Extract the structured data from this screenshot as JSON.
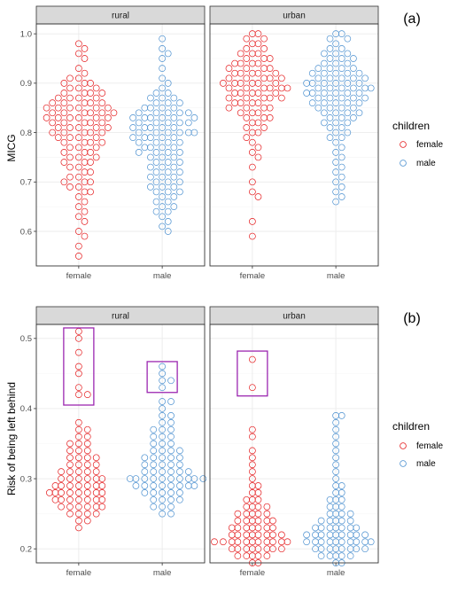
{
  "chart_data": [
    {
      "type": "scatter",
      "subtype": "beeswarm",
      "tag": "(a)",
      "ylabel": "MICG",
      "ylim": [
        0.53,
        1.02
      ],
      "yticks": [
        0.6,
        0.7,
        0.8,
        0.9,
        1.0
      ],
      "ytick_labels": [
        "0.6",
        "0.7",
        "0.8",
        "0.9",
        "1.0"
      ],
      "categories": [
        "female",
        "male"
      ],
      "facets": [
        {
          "label": "rural",
          "series": [
            {
              "name": "female",
              "values": [
                0.98,
                0.97,
                0.96,
                0.95,
                0.93,
                0.92,
                0.91,
                0.91,
                0.9,
                0.9,
                0.9,
                0.89,
                0.89,
                0.89,
                0.88,
                0.88,
                0.88,
                0.88,
                0.87,
                0.87,
                0.87,
                0.87,
                0.86,
                0.86,
                0.86,
                0.86,
                0.86,
                0.85,
                0.85,
                0.85,
                0.85,
                0.85,
                0.85,
                0.84,
                0.84,
                0.84,
                0.84,
                0.84,
                0.84,
                0.83,
                0.83,
                0.83,
                0.83,
                0.83,
                0.83,
                0.82,
                0.82,
                0.82,
                0.82,
                0.82,
                0.81,
                0.81,
                0.81,
                0.81,
                0.81,
                0.8,
                0.8,
                0.8,
                0.8,
                0.8,
                0.79,
                0.79,
                0.79,
                0.79,
                0.78,
                0.78,
                0.78,
                0.78,
                0.77,
                0.77,
                0.77,
                0.76,
                0.76,
                0.76,
                0.75,
                0.75,
                0.75,
                0.74,
                0.74,
                0.74,
                0.73,
                0.73,
                0.72,
                0.72,
                0.71,
                0.71,
                0.7,
                0.7,
                0.7,
                0.69,
                0.69,
                0.68,
                0.68,
                0.67,
                0.66,
                0.65,
                0.64,
                0.63,
                0.62,
                0.6,
                0.59,
                0.57,
                0.55
              ]
            },
            {
              "name": "male",
              "values": [
                0.99,
                0.97,
                0.96,
                0.95,
                0.93,
                0.91,
                0.9,
                0.89,
                0.88,
                0.88,
                0.87,
                0.87,
                0.87,
                0.86,
                0.86,
                0.86,
                0.85,
                0.85,
                0.85,
                0.85,
                0.84,
                0.84,
                0.84,
                0.84,
                0.84,
                0.83,
                0.83,
                0.83,
                0.83,
                0.83,
                0.83,
                0.82,
                0.82,
                0.82,
                0.82,
                0.82,
                0.81,
                0.81,
                0.81,
                0.81,
                0.81,
                0.8,
                0.8,
                0.8,
                0.8,
                0.8,
                0.8,
                0.79,
                0.79,
                0.79,
                0.79,
                0.79,
                0.78,
                0.78,
                0.78,
                0.78,
                0.77,
                0.77,
                0.77,
                0.77,
                0.76,
                0.76,
                0.76,
                0.76,
                0.75,
                0.75,
                0.75,
                0.74,
                0.74,
                0.74,
                0.73,
                0.73,
                0.73,
                0.72,
                0.72,
                0.72,
                0.71,
                0.71,
                0.71,
                0.7,
                0.7,
                0.7,
                0.69,
                0.69,
                0.69,
                0.68,
                0.68,
                0.68,
                0.67,
                0.67,
                0.66,
                0.66,
                0.65,
                0.65,
                0.64,
                0.64,
                0.63,
                0.62,
                0.61,
                0.6
              ]
            }
          ]
        },
        {
          "label": "urban",
          "series": [
            {
              "name": "female",
              "values": [
                1.0,
                1.0,
                0.99,
                0.99,
                0.98,
                0.98,
                0.97,
                0.97,
                0.96,
                0.96,
                0.96,
                0.95,
                0.95,
                0.95,
                0.94,
                0.94,
                0.94,
                0.94,
                0.93,
                0.93,
                0.93,
                0.93,
                0.92,
                0.92,
                0.92,
                0.92,
                0.92,
                0.91,
                0.91,
                0.91,
                0.91,
                0.91,
                0.9,
                0.9,
                0.9,
                0.9,
                0.9,
                0.9,
                0.89,
                0.89,
                0.89,
                0.89,
                0.89,
                0.89,
                0.88,
                0.88,
                0.88,
                0.88,
                0.88,
                0.87,
                0.87,
                0.87,
                0.87,
                0.87,
                0.86,
                0.86,
                0.86,
                0.86,
                0.85,
                0.85,
                0.85,
                0.85,
                0.84,
                0.84,
                0.84,
                0.83,
                0.83,
                0.83,
                0.82,
                0.82,
                0.81,
                0.81,
                0.8,
                0.8,
                0.79,
                0.78,
                0.77,
                0.76,
                0.75,
                0.73,
                0.7,
                0.68,
                0.67,
                0.62,
                0.59
              ]
            },
            {
              "name": "male",
              "values": [
                1.0,
                1.0,
                0.99,
                0.99,
                0.98,
                0.97,
                0.97,
                0.96,
                0.96,
                0.96,
                0.95,
                0.95,
                0.95,
                0.94,
                0.94,
                0.94,
                0.93,
                0.93,
                0.93,
                0.93,
                0.92,
                0.92,
                0.92,
                0.92,
                0.92,
                0.91,
                0.91,
                0.91,
                0.91,
                0.91,
                0.9,
                0.9,
                0.9,
                0.9,
                0.9,
                0.9,
                0.89,
                0.89,
                0.89,
                0.89,
                0.89,
                0.89,
                0.88,
                0.88,
                0.88,
                0.88,
                0.88,
                0.88,
                0.87,
                0.87,
                0.87,
                0.87,
                0.87,
                0.86,
                0.86,
                0.86,
                0.86,
                0.86,
                0.85,
                0.85,
                0.85,
                0.85,
                0.84,
                0.84,
                0.84,
                0.84,
                0.83,
                0.83,
                0.83,
                0.82,
                0.82,
                0.82,
                0.81,
                0.81,
                0.8,
                0.8,
                0.79,
                0.79,
                0.78,
                0.77,
                0.76,
                0.75,
                0.74,
                0.73,
                0.72,
                0.71,
                0.7,
                0.69,
                0.68,
                0.67,
                0.66
              ]
            }
          ]
        }
      ],
      "highlight_boxes": []
    },
    {
      "type": "scatter",
      "subtype": "beeswarm",
      "tag": "(b)",
      "ylabel": "Risk of being left behind",
      "ylim": [
        0.18,
        0.52
      ],
      "yticks": [
        0.2,
        0.3,
        0.4,
        0.5
      ],
      "ytick_labels": [
        "0.2",
        "0.3",
        "0.4",
        "0.5"
      ],
      "categories": [
        "female",
        "male"
      ],
      "facets": [
        {
          "label": "rural",
          "series": [
            {
              "name": "female",
              "values": [
                0.51,
                0.5,
                0.48,
                0.46,
                0.45,
                0.43,
                0.42,
                0.42,
                0.38,
                0.37,
                0.37,
                0.36,
                0.36,
                0.35,
                0.35,
                0.35,
                0.34,
                0.34,
                0.34,
                0.33,
                0.33,
                0.33,
                0.33,
                0.32,
                0.32,
                0.32,
                0.32,
                0.31,
                0.31,
                0.31,
                0.31,
                0.31,
                0.3,
                0.3,
                0.3,
                0.3,
                0.3,
                0.3,
                0.29,
                0.29,
                0.29,
                0.29,
                0.29,
                0.29,
                0.29,
                0.28,
                0.28,
                0.28,
                0.28,
                0.28,
                0.28,
                0.28,
                0.28,
                0.27,
                0.27,
                0.27,
                0.27,
                0.27,
                0.27,
                0.27,
                0.26,
                0.26,
                0.26,
                0.26,
                0.26,
                0.26,
                0.25,
                0.25,
                0.25,
                0.25,
                0.24,
                0.24,
                0.23
              ]
            },
            {
              "name": "male",
              "values": [
                0.46,
                0.45,
                0.44,
                0.44,
                0.43,
                0.41,
                0.41,
                0.4,
                0.39,
                0.39,
                0.38,
                0.38,
                0.37,
                0.37,
                0.37,
                0.36,
                0.36,
                0.36,
                0.35,
                0.35,
                0.35,
                0.34,
                0.34,
                0.34,
                0.34,
                0.33,
                0.33,
                0.33,
                0.33,
                0.33,
                0.32,
                0.32,
                0.32,
                0.32,
                0.32,
                0.31,
                0.31,
                0.31,
                0.31,
                0.31,
                0.31,
                0.3,
                0.3,
                0.3,
                0.3,
                0.3,
                0.3,
                0.3,
                0.3,
                0.3,
                0.3,
                0.29,
                0.29,
                0.29,
                0.29,
                0.29,
                0.29,
                0.29,
                0.29,
                0.28,
                0.28,
                0.28,
                0.28,
                0.28,
                0.27,
                0.27,
                0.27,
                0.27,
                0.26,
                0.26,
                0.26,
                0.25,
                0.25
              ]
            }
          ]
        },
        {
          "label": "urban",
          "series": [
            {
              "name": "female",
              "values": [
                0.47,
                0.43,
                0.37,
                0.36,
                0.34,
                0.33,
                0.32,
                0.31,
                0.3,
                0.29,
                0.29,
                0.28,
                0.28,
                0.27,
                0.27,
                0.27,
                0.26,
                0.26,
                0.26,
                0.26,
                0.25,
                0.25,
                0.25,
                0.25,
                0.25,
                0.24,
                0.24,
                0.24,
                0.24,
                0.24,
                0.24,
                0.23,
                0.23,
                0.23,
                0.23,
                0.23,
                0.23,
                0.23,
                0.22,
                0.22,
                0.22,
                0.22,
                0.22,
                0.22,
                0.22,
                0.22,
                0.21,
                0.21,
                0.21,
                0.21,
                0.21,
                0.21,
                0.21,
                0.21,
                0.21,
                0.21,
                0.21,
                0.2,
                0.2,
                0.2,
                0.2,
                0.2,
                0.2,
                0.2,
                0.2,
                0.19,
                0.19,
                0.19,
                0.19,
                0.19,
                0.18,
                0.18
              ]
            },
            {
              "name": "male",
              "values": [
                0.39,
                0.39,
                0.38,
                0.37,
                0.36,
                0.35,
                0.34,
                0.33,
                0.32,
                0.31,
                0.3,
                0.29,
                0.29,
                0.28,
                0.28,
                0.27,
                0.27,
                0.27,
                0.26,
                0.26,
                0.26,
                0.25,
                0.25,
                0.25,
                0.25,
                0.24,
                0.24,
                0.24,
                0.24,
                0.24,
                0.23,
                0.23,
                0.23,
                0.23,
                0.23,
                0.23,
                0.23,
                0.22,
                0.22,
                0.22,
                0.22,
                0.22,
                0.22,
                0.22,
                0.22,
                0.22,
                0.21,
                0.21,
                0.21,
                0.21,
                0.21,
                0.21,
                0.21,
                0.21,
                0.21,
                0.21,
                0.2,
                0.2,
                0.2,
                0.2,
                0.2,
                0.2,
                0.2,
                0.2,
                0.19,
                0.19,
                0.19,
                0.19,
                0.19,
                0.18,
                0.18
              ]
            }
          ]
        }
      ],
      "highlight_boxes": [
        {
          "facet": "rural",
          "category": "female",
          "y_range": [
            0.405,
            0.515
          ]
        },
        {
          "facet": "rural",
          "category": "male",
          "y_range": [
            0.423,
            0.467
          ]
        },
        {
          "facet": "urban",
          "category": "female",
          "y_range": [
            0.418,
            0.482
          ]
        }
      ]
    }
  ],
  "legend": {
    "title": "children",
    "entries": [
      "female",
      "male"
    ],
    "placement": "right"
  },
  "colors": {
    "female": "#e41a1c",
    "male": "#4a8fcf",
    "highlight_box": "#9c27b0",
    "strip_fill": "#d9d9d9",
    "grid_major": "#ebebeb",
    "grid_minor": "#f5f5f5"
  }
}
